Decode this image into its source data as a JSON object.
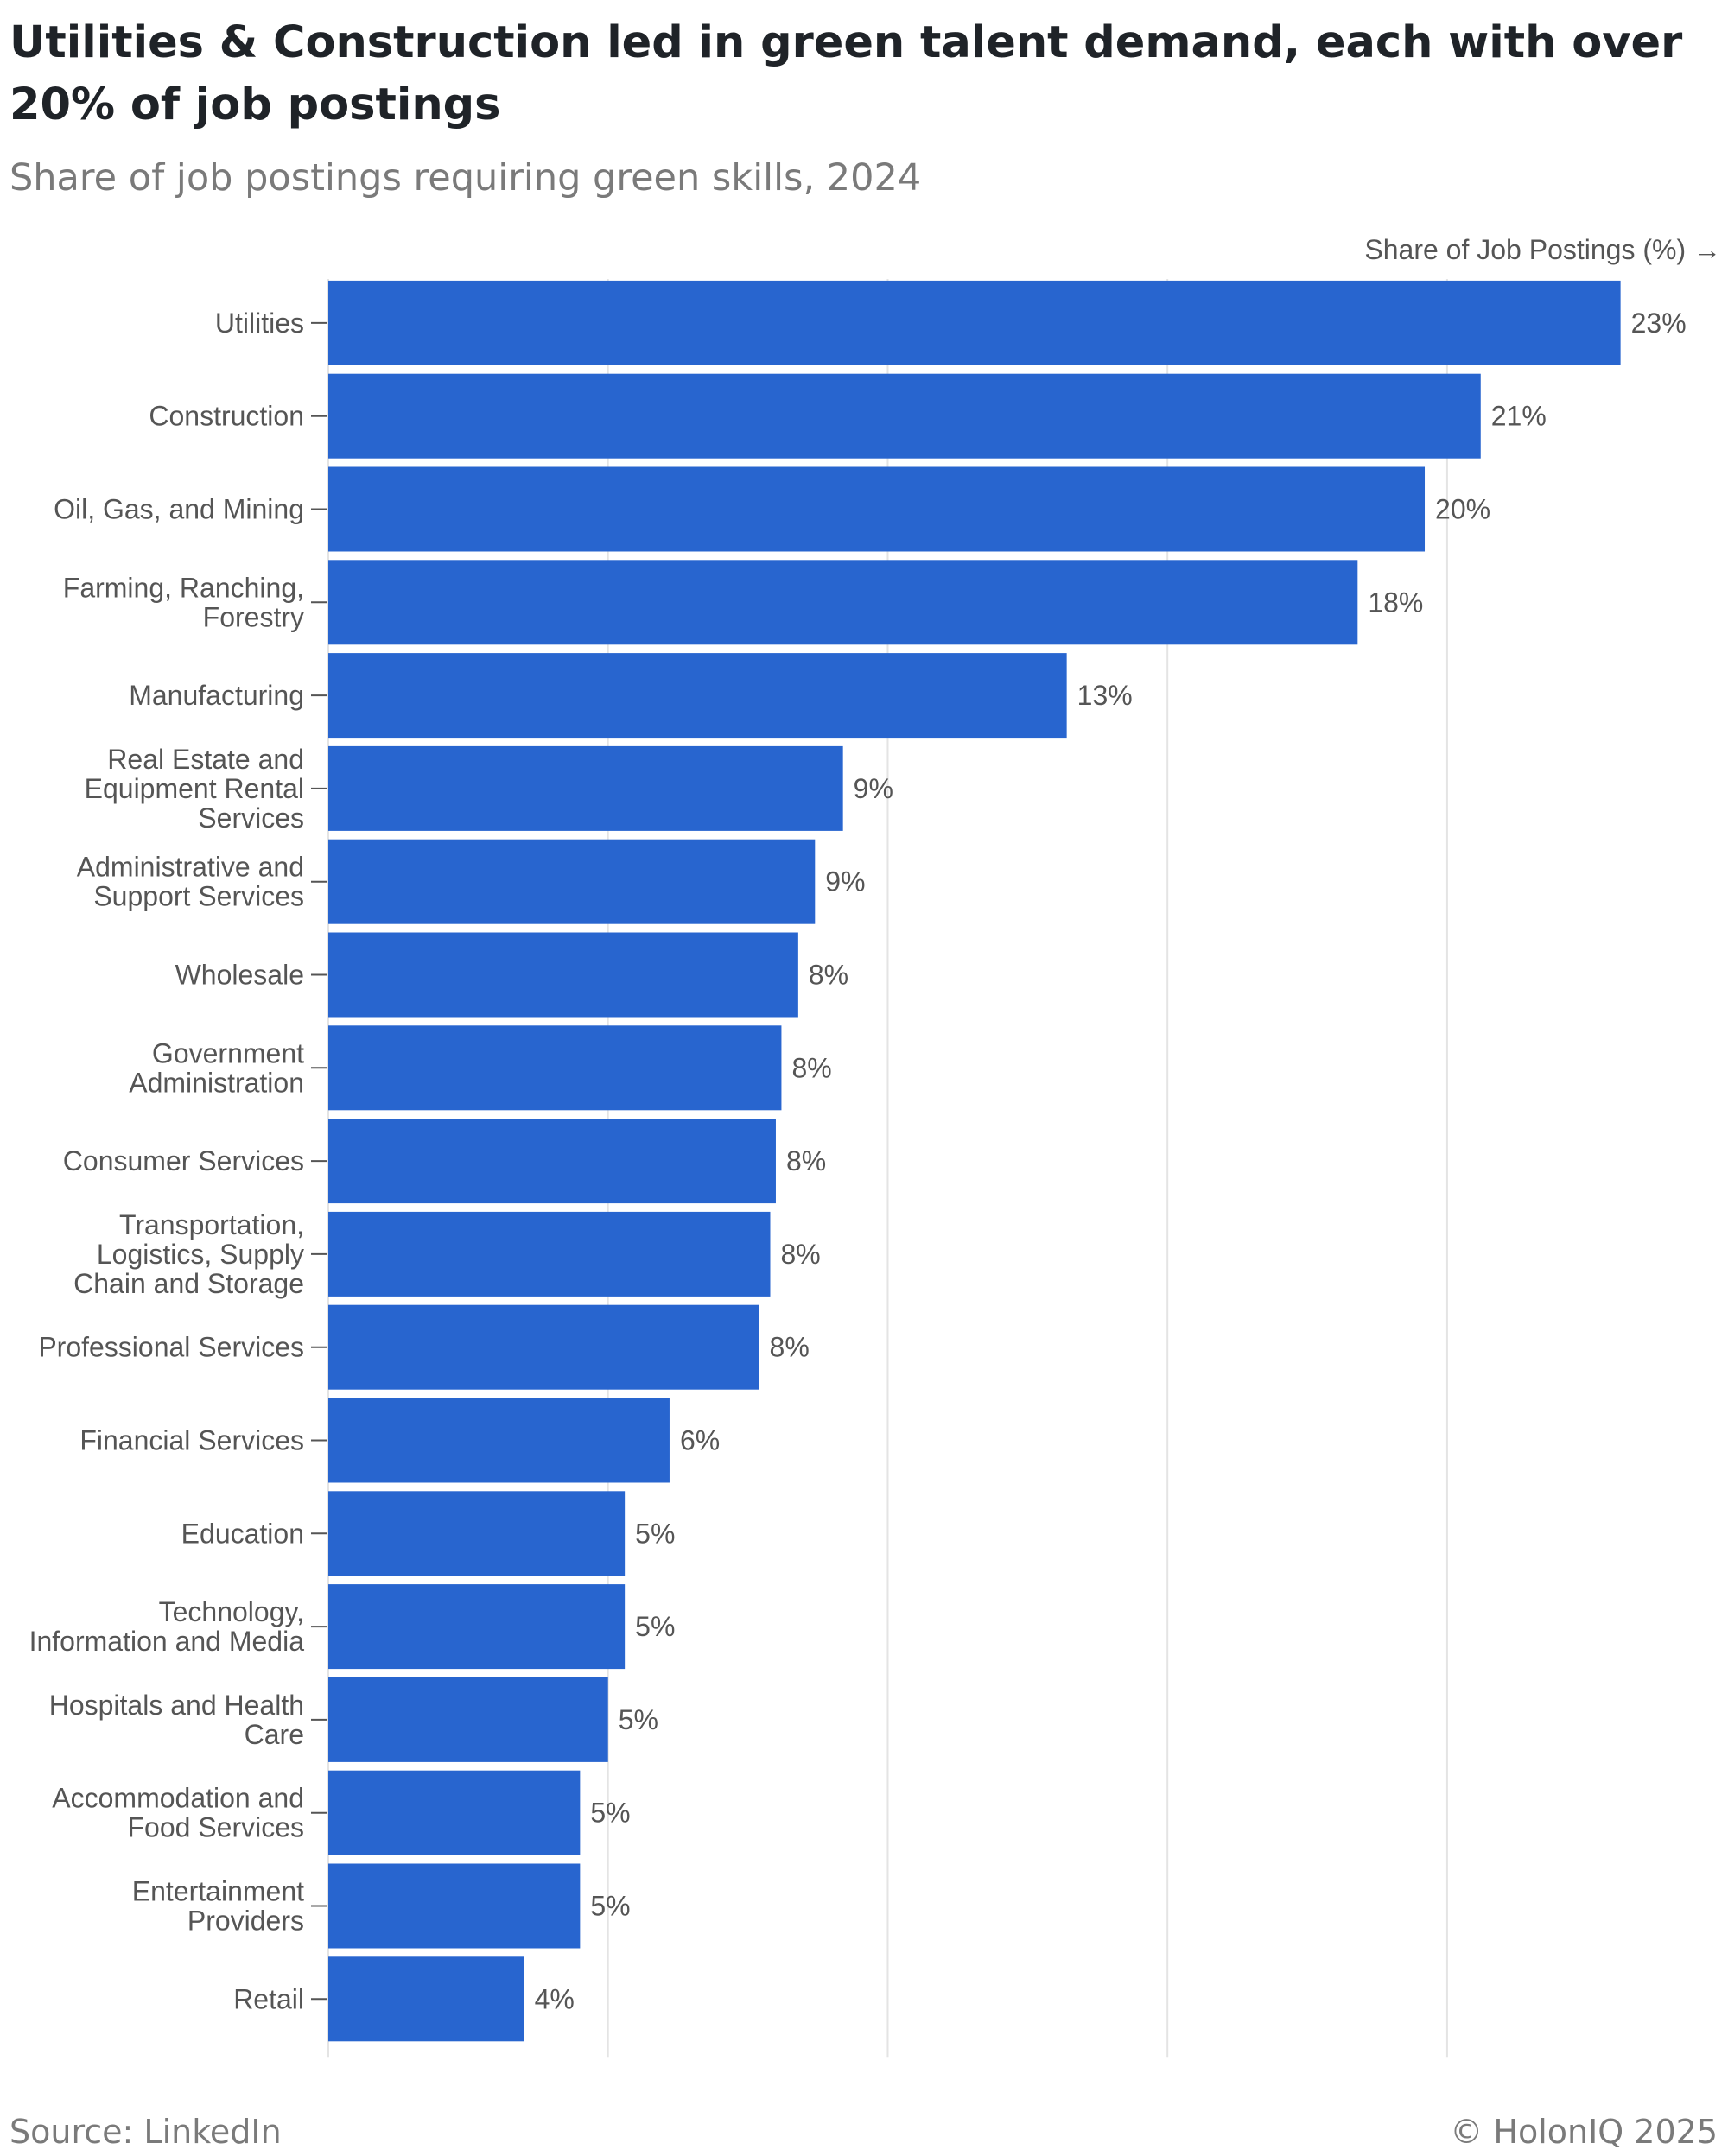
{
  "header": {
    "title": "Utilities & Construction led in green talent demand, each with over 20% of job postings",
    "subtitle": "Share of job postings requiring green skills, 2024"
  },
  "footer": {
    "source": "Source: LinkedIn",
    "copyright": "© HolonIQ 2025"
  },
  "colors": {
    "bar": "#2865cf",
    "grid": "#e4e4e4",
    "axis": "#555555"
  },
  "chart_data": {
    "type": "bar",
    "orientation": "horizontal",
    "title": "Utilities & Construction led in green talent demand, each with over 20% of job postings",
    "subtitle": "Share of job postings requiring green skills, 2024",
    "xlabel": "Share of Job Postings (%) →",
    "ylabel": "",
    "xlim": [
      0,
      23.6
    ],
    "gridlines_at": [
      0,
      5,
      10,
      15,
      20
    ],
    "grid": true,
    "categories": [
      [
        "Utilities"
      ],
      [
        "Construction"
      ],
      [
        "Oil, Gas, and Mining"
      ],
      [
        "Farming, Ranching,",
        "Forestry"
      ],
      [
        "Manufacturing"
      ],
      [
        "Real Estate and",
        "Equipment Rental",
        "Services"
      ],
      [
        "Administrative and",
        "Support Services"
      ],
      [
        "Wholesale"
      ],
      [
        "Government",
        "Administration"
      ],
      [
        "Consumer Services"
      ],
      [
        "Transportation,",
        "Logistics, Supply",
        "Chain and Storage"
      ],
      [
        "Professional Services"
      ],
      [
        "Financial Services"
      ],
      [
        "Education"
      ],
      [
        "Technology,",
        "Information and Media"
      ],
      [
        "Hospitals and Health",
        "Care"
      ],
      [
        "Accommodation and",
        "Food Services"
      ],
      [
        "Entertainment",
        "Providers"
      ],
      [
        "Retail"
      ]
    ],
    "values": [
      23.1,
      20.6,
      19.6,
      18.4,
      13.2,
      9.2,
      8.7,
      8.4,
      8.1,
      8.0,
      7.9,
      7.7,
      6.1,
      5.3,
      5.3,
      5.0,
      4.5,
      4.5,
      3.5
    ],
    "value_labels": [
      "23%",
      "21%",
      "20%",
      "18%",
      "13%",
      "9%",
      "9%",
      "8%",
      "8%",
      "8%",
      "8%",
      "8%",
      "6%",
      "5%",
      "5%",
      "5%",
      "5%",
      "5%",
      "4%"
    ]
  }
}
